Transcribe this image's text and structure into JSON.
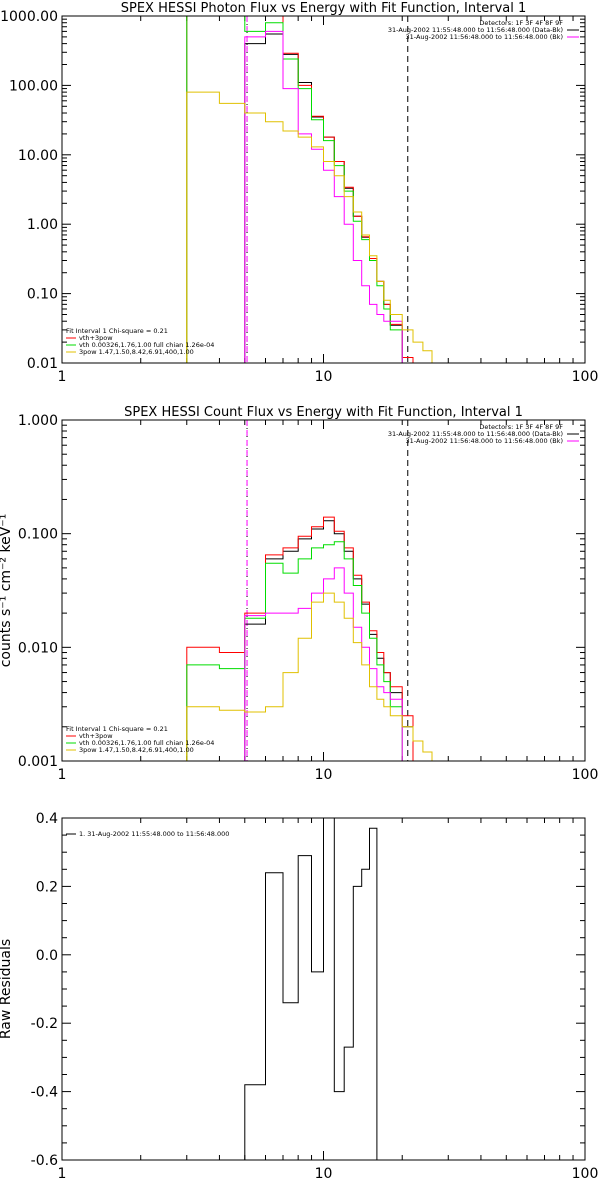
{
  "chart_data": [
    {
      "type": "line",
      "title": "SPEX HESSI Photon Flux vs Energy with Fit Function, Interval 1",
      "ylabel": "",
      "xlabel": "",
      "xscale": "log",
      "yscale": "log",
      "xlim": [
        1,
        100
      ],
      "ylim": [
        0.01,
        1000
      ],
      "x_ticks": [
        "1",
        "10",
        "100"
      ],
      "y_ticks": [
        "0.01",
        "0.10",
        "1.00",
        "10.00",
        "100.00",
        "1000.00"
      ],
      "header_lines": [
        "Detectors: 1F 3F 4F 8F 9F",
        "31-Aug-2002 11:55:48.000 to 11:56:48.000 (Data-Bk)",
        "31-Aug-2002 11:56:48.000 to 11:56:48.000 (Bk)"
      ],
      "legend": [
        {
          "text": "Fit Interval 1    Chi-square = 0.21",
          "color": "#000000"
        },
        {
          "text": "vth+3pow",
          "color": "#ff0000"
        },
        {
          "text": "vth 0.00326,1.76,1.00  full chian 1.26e-04",
          "color": "#00dd00"
        },
        {
          "text": "3pow 1.47,1.50,8.42,6.91,400,1.00",
          "color": "#e0c000"
        }
      ],
      "edges": [
        3,
        4,
        5,
        6,
        7,
        8,
        9,
        10,
        11,
        12,
        13,
        14,
        15,
        16,
        17,
        18,
        20,
        22,
        24,
        26
      ],
      "vlines": [
        {
          "x": 5.1,
          "style": "dotted",
          "color": "#000000"
        },
        {
          "x": 21,
          "style": "dashed",
          "color": "#000000"
        },
        {
          "x": 5.1,
          "style": "dashed",
          "color": "#ff00ff"
        }
      ],
      "series": [
        {
          "color": "#000000",
          "values": [
            null,
            null,
            400,
            550,
            280,
            110,
            35,
            18,
            8,
            3.3,
            1.3,
            0.65,
            0.32,
            0.15,
            0.07,
            0.035,
            0.012,
            null,
            null
          ]
        },
        {
          "color": "#ff0000",
          "values": [
            1000,
            1000,
            1000,
            1000,
            290,
            100,
            36,
            18,
            8,
            3.4,
            1.3,
            0.66,
            0.32,
            0.15,
            0.07,
            0.036,
            0.012,
            null,
            null
          ]
        },
        {
          "color": "#00dd00",
          "values": [
            1000,
            1000,
            600,
            800,
            240,
            90,
            32,
            16,
            7,
            3,
            1.1,
            0.6,
            0.3,
            0.13,
            0.06,
            0.03,
            0.008,
            null,
            null
          ]
        },
        {
          "color": "#ff00ff",
          "values": [
            null,
            null,
            500,
            600,
            90,
            20,
            12,
            6,
            2.5,
            1,
            0.3,
            0.13,
            0.07,
            0.05,
            0.04,
            0.04,
            null,
            null,
            null
          ]
        },
        {
          "color": "#e0c000",
          "values": [
            80,
            55,
            40,
            30,
            22,
            18,
            13,
            8,
            5,
            2.5,
            1.5,
            0.7,
            0.35,
            0.15,
            0.08,
            0.05,
            0.03,
            0.02,
            0.015
          ]
        }
      ]
    },
    {
      "type": "line",
      "title": "SPEX HESSI Count Flux vs Energy with Fit Function, Interval 1",
      "ylabel": "counts s⁻¹ cm⁻² keV⁻¹",
      "xlabel": "",
      "xscale": "log",
      "yscale": "log",
      "xlim": [
        1,
        100
      ],
      "ylim": [
        0.001,
        1
      ],
      "x_ticks": [
        "1",
        "10",
        "100"
      ],
      "y_ticks": [
        "0.001",
        "0.010",
        "0.100",
        "1.000"
      ],
      "header_lines": [
        "Detectors: 1F 3F 4F 8F 9F",
        "31-Aug-2002 11:55:48.000 to 11:56:48.000 (Data-Bk)",
        "31-Aug-2002 11:56:48.000 to 11:56:48.000 (Bk)"
      ],
      "legend": [
        {
          "text": "Fit Interval 1    Chi-square = 0.21",
          "color": "#000000"
        },
        {
          "text": "vth+3pow",
          "color": "#ff0000"
        },
        {
          "text": "vth 0.00326,1.76,1.00  full chian 1.26e-04",
          "color": "#00dd00"
        },
        {
          "text": "3pow 1.47,1.50,8.42,6.91,400,1.00",
          "color": "#e0c000"
        }
      ],
      "edges": [
        3,
        4,
        5,
        6,
        7,
        8,
        9,
        10,
        11,
        12,
        13,
        14,
        15,
        16,
        17,
        18,
        20,
        22,
        24,
        26
      ],
      "vlines": [
        {
          "x": 5.1,
          "style": "dotted",
          "color": "#000000"
        },
        {
          "x": 21,
          "style": "dashed",
          "color": "#000000"
        },
        {
          "x": 5.1,
          "style": "dashed",
          "color": "#ff00ff"
        }
      ],
      "series": [
        {
          "color": "#000000",
          "values": [
            null,
            null,
            0.016,
            0.06,
            0.07,
            0.09,
            0.11,
            0.13,
            0.1,
            0.07,
            0.04,
            0.024,
            0.013,
            0.008,
            0.006,
            0.004,
            0.002,
            null,
            null
          ]
        },
        {
          "color": "#ff0000",
          "values": [
            0.01,
            0.009,
            0.02,
            0.065,
            0.075,
            0.095,
            0.115,
            0.14,
            0.105,
            0.075,
            0.043,
            0.025,
            0.014,
            0.009,
            0.006,
            0.0045,
            0.0025,
            null,
            null
          ]
        },
        {
          "color": "#00dd00",
          "values": [
            0.007,
            0.0065,
            0.018,
            0.055,
            0.045,
            0.06,
            0.075,
            0.08,
            0.085,
            0.06,
            0.035,
            0.02,
            0.012,
            0.007,
            0.005,
            0.003,
            0.001,
            null,
            null
          ]
        },
        {
          "color": "#ff00ff",
          "values": [
            null,
            null,
            0.019,
            0.02,
            0.02,
            0.022,
            0.03,
            0.04,
            0.05,
            0.03,
            0.015,
            0.01,
            0.0065,
            0.0045,
            0.004,
            0.0035,
            null,
            null,
            null
          ]
        },
        {
          "color": "#e0c000",
          "values": [
            0.003,
            0.0028,
            0.0027,
            0.003,
            0.006,
            0.012,
            0.025,
            0.03,
            0.025,
            0.018,
            0.011,
            0.007,
            0.0045,
            0.0035,
            0.003,
            0.0025,
            0.002,
            0.0015,
            0.0012
          ]
        }
      ]
    },
    {
      "type": "line",
      "title": "",
      "ylabel": "Raw Residuals",
      "xlabel": "",
      "xscale": "log",
      "yscale": "linear",
      "xlim": [
        1,
        100
      ],
      "ylim": [
        -0.6,
        0.4
      ],
      "x_ticks": [
        "1",
        "10",
        "100"
      ],
      "y_ticks": [
        "-0.6",
        "-0.4",
        "-0.2",
        "0.0",
        "0.2",
        "0.4"
      ],
      "header_lines": [],
      "legend": [
        {
          "text": "1. 31-Aug-2002 11:55:48.000 to 11:56:48.000",
          "color": "#000000"
        }
      ],
      "edges": [
        5,
        6,
        7,
        8,
        9,
        10,
        11,
        12,
        13,
        14,
        15,
        16,
        17,
        18,
        20
      ],
      "vlines": [],
      "series": [
        {
          "color": "#000000",
          "values": [
            -0.38,
            0.24,
            -0.14,
            0.29,
            -0.05,
            0.4,
            -0.4,
            -0.27,
            0.2,
            0.25,
            0.37,
            -0.6,
            -0.6,
            -0.6
          ]
        }
      ]
    }
  ]
}
